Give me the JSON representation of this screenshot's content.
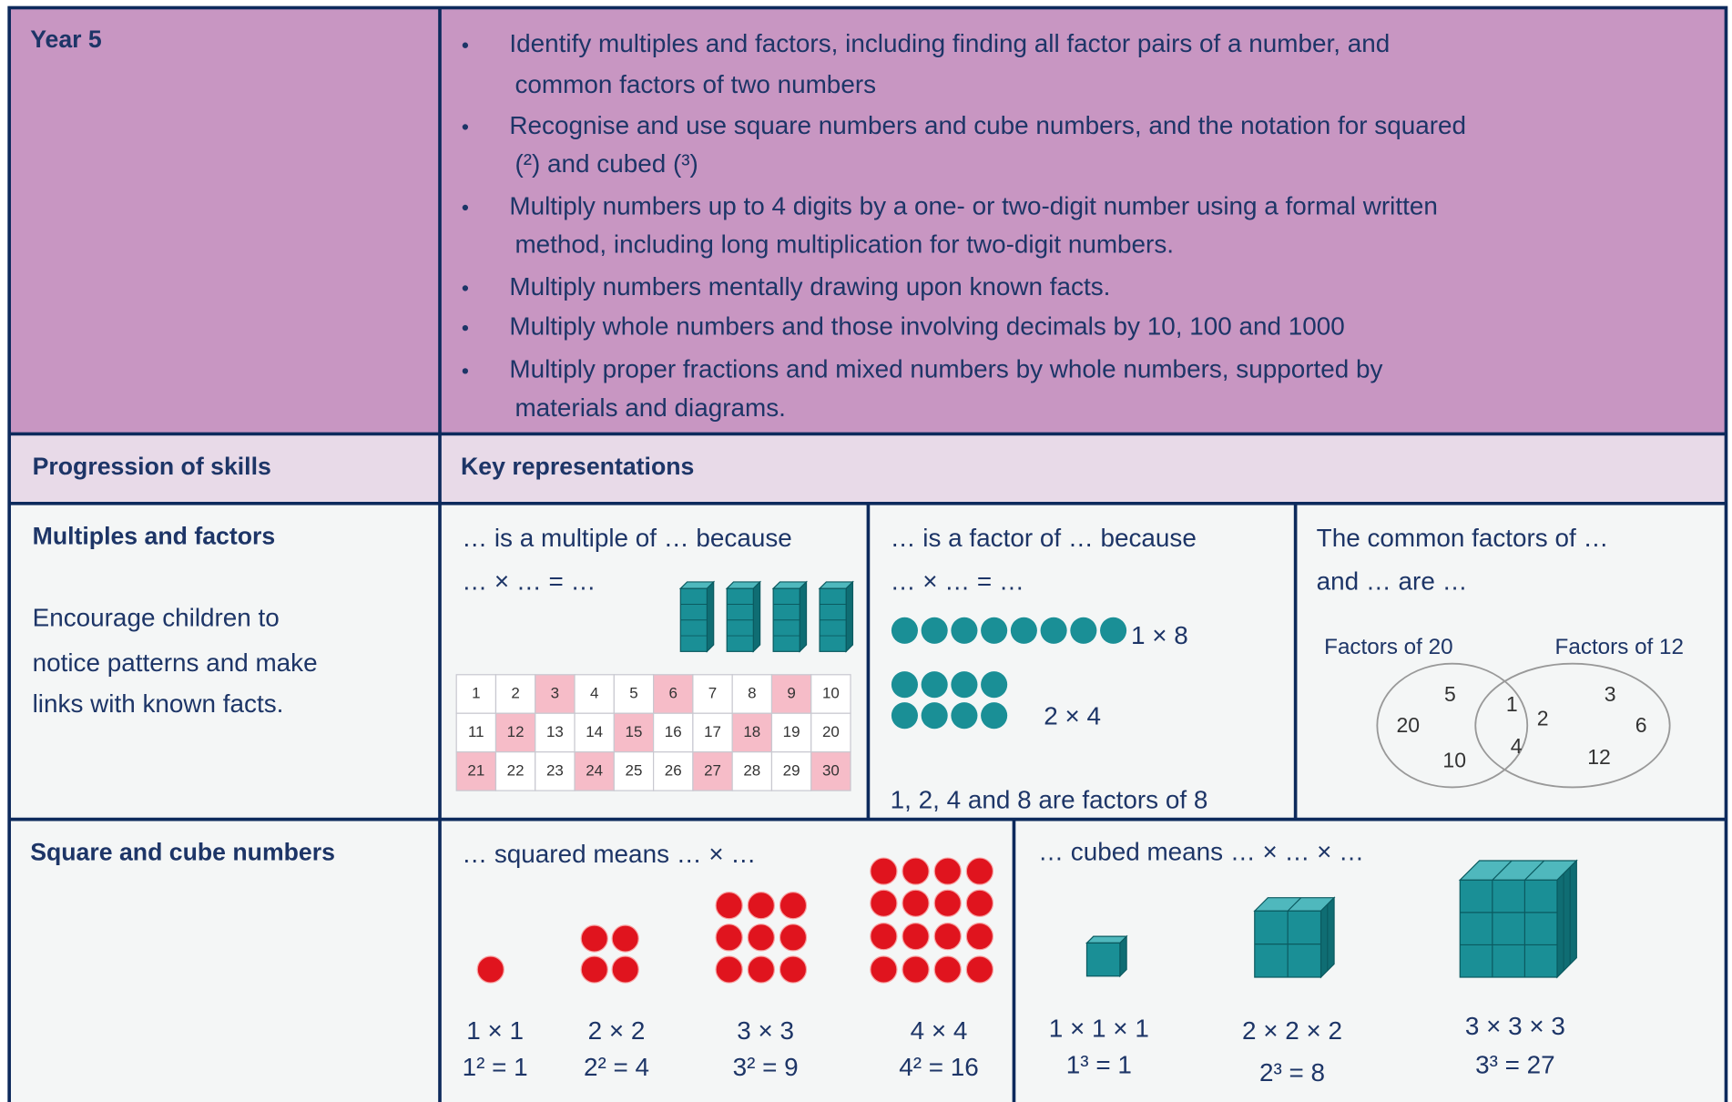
{
  "header": {
    "year": "Year 5",
    "objectives": [
      [
        "Identify multiples and factors, including finding all factor pairs of a number, and",
        "common factors of two numbers"
      ],
      [
        "Recognise and use square numbers and cube numbers, and the notation for squared",
        "(²) and cubed (³)"
      ],
      [
        "Multiply numbers up to 4 digits by a one- or two-digit number using a formal written",
        "method, including long multiplication for two-digit numbers."
      ],
      [
        "Multiply numbers mentally drawing upon known facts."
      ],
      [
        "Multiply whole numbers and those involving decimals by 10, 100 and 1000"
      ],
      [
        "Multiply proper fractions and mixed numbers by whole numbers, supported by",
        "materials and diagrams."
      ]
    ]
  },
  "columns": {
    "left": "Progression of skills",
    "right": "Key representations"
  },
  "multiples_factors": {
    "title": "Multiples and factors",
    "note": [
      "Encourage children to",
      "notice patterns and make",
      "links with known facts."
    ],
    "multiple_prompt": [
      "… is a multiple of … because",
      "… × … = …"
    ],
    "number_grid": [
      1,
      2,
      3,
      4,
      5,
      6,
      7,
      8,
      9,
      10,
      11,
      12,
      13,
      14,
      15,
      16,
      17,
      18,
      19,
      20,
      21,
      22,
      23,
      24,
      25,
      26,
      27,
      28,
      29,
      30
    ],
    "highlighted": [
      3,
      6,
      9,
      12,
      15,
      18,
      21,
      24,
      27,
      30
    ],
    "factor_prompt": [
      "… is a factor of … because",
      "… × … = …"
    ],
    "arrays": [
      "1 × 8",
      "2 × 4"
    ],
    "factor_statement": "1, 2, 4 and 8 are factors of 8",
    "common_prompt": [
      "The common factors of …",
      "and … are …"
    ],
    "venn": {
      "left_label": "Factors of 20",
      "right_label": "Factors of 12",
      "left_only": [
        5,
        20,
        10
      ],
      "both": [
        1,
        2,
        4
      ],
      "right_only": [
        3,
        6,
        12
      ]
    }
  },
  "square_cube": {
    "title": "Square and cube numbers",
    "square_prompt": "… squared means … × …",
    "squares": [
      {
        "calc": "1 × 1",
        "result": "1² = 1"
      },
      {
        "calc": "2 × 2",
        "result": "2² = 4"
      },
      {
        "calc": "3 × 3",
        "result": "3² = 9"
      },
      {
        "calc": "4 × 4",
        "result": "4² = 16"
      }
    ],
    "cube_prompt": "… cubed means … ×  … × …",
    "cubes": [
      {
        "calc": "1 × 1 × 1",
        "result": "1³ = 1"
      },
      {
        "calc": "2 × 2 × 2",
        "result": "2³ = 8"
      },
      {
        "calc": "3 × 3 × 3",
        "result": "3³ = 27"
      }
    ]
  }
}
